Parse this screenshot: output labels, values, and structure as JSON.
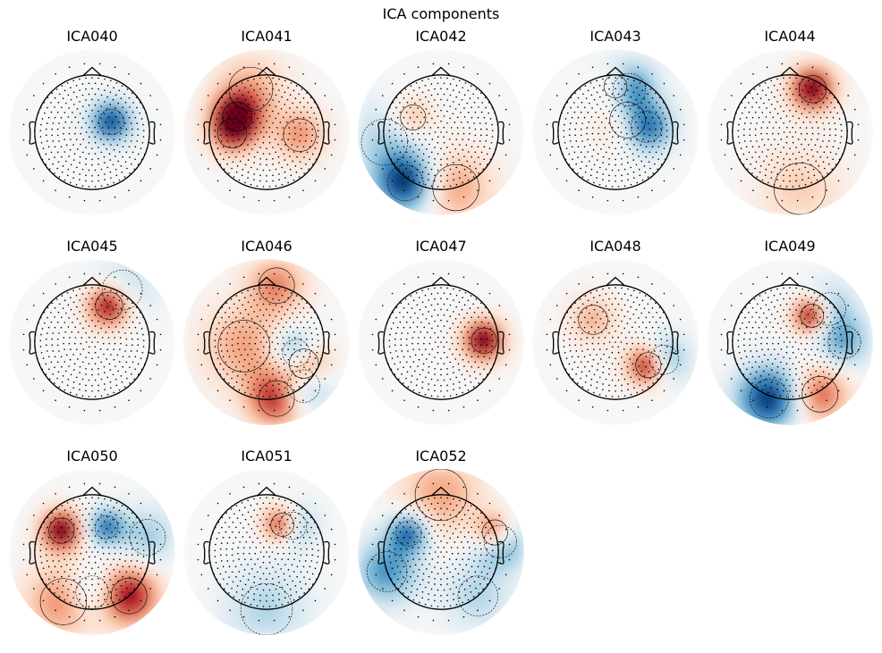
{
  "figure": {
    "title": "ICA components",
    "colors": {
      "positive": "#b2182b",
      "negative": "#2166ac",
      "neutral": "#f7f7f7",
      "outline": "#000000",
      "sensor": "#000000"
    }
  },
  "chart_data": {
    "type": "topomap-grid",
    "title": "ICA components",
    "rows": 3,
    "cols": 5,
    "colormap": "RdBu_r (red = positive weight, blue = negative weight)",
    "components": [
      {
        "label": "ICA040",
        "sources": [
          {
            "az": 62,
            "r": 0.38,
            "w": -0.9,
            "s": 0.06
          }
        ]
      },
      {
        "label": "ICA041",
        "sources": [
          {
            "az": -62,
            "r": 0.58,
            "w": 1.0,
            "s": 0.08
          },
          {
            "az": -92,
            "r": 0.6,
            "w": 0.5,
            "s": 0.08
          },
          {
            "az": 95,
            "r": 0.58,
            "w": 0.45,
            "s": 0.1
          },
          {
            "az": -20,
            "r": 0.8,
            "w": 0.35,
            "s": 0.18
          }
        ]
      },
      {
        "label": "ICA042",
        "sources": [
          {
            "az": -145,
            "r": 1.08,
            "w": -1.0,
            "s": 0.12
          },
          {
            "az": 165,
            "r": 1.0,
            "w": 0.4,
            "s": 0.2
          },
          {
            "az": -62,
            "r": 0.55,
            "w": 0.35,
            "s": 0.06
          },
          {
            "az": -100,
            "r": 1.0,
            "w": -0.3,
            "s": 0.2
          }
        ]
      },
      {
        "label": "ICA043",
        "sources": [
          {
            "az": 80,
            "r": 0.55,
            "w": -0.9,
            "s": 0.09
          },
          {
            "az": 18,
            "r": 0.78,
            "w": -0.8,
            "s": 0.1
          },
          {
            "az": 45,
            "r": 0.3,
            "w": 0.35,
            "s": 0.12
          },
          {
            "az": 0,
            "r": 0.8,
            "w": 0.4,
            "s": 0.05
          }
        ]
      },
      {
        "label": "ICA044",
        "sources": [
          {
            "az": 28,
            "r": 0.85,
            "w": 1.0,
            "s": 0.07
          },
          {
            "az": 170,
            "r": 1.0,
            "w": 0.25,
            "s": 0.25
          }
        ]
      },
      {
        "label": "ICA045",
        "sources": [
          {
            "az": 25,
            "r": 0.7,
            "w": 1.0,
            "s": 0.07
          },
          {
            "az": 30,
            "r": 1.05,
            "w": -0.3,
            "s": 0.15
          }
        ]
      },
      {
        "label": "ICA046",
        "sources": [
          {
            "az": 120,
            "r": 0.75,
            "w": 1.0,
            "s": 0.08
          },
          {
            "az": 110,
            "r": 0.55,
            "w": -0.9,
            "s": 0.07
          },
          {
            "az": 170,
            "r": 1.0,
            "w": 0.8,
            "s": 0.12
          },
          {
            "az": 140,
            "r": 1.0,
            "w": -0.6,
            "s": 0.1
          },
          {
            "az": -100,
            "r": 0.4,
            "w": 0.4,
            "s": 0.25
          },
          {
            "az": 10,
            "r": 1.0,
            "w": 0.5,
            "s": 0.12
          }
        ]
      },
      {
        "label": "ICA047",
        "sources": [
          {
            "az": 88,
            "r": 0.75,
            "w": 1.0,
            "s": 0.06
          }
        ]
      },
      {
        "label": "ICA048",
        "sources": [
          {
            "az": 125,
            "r": 0.7,
            "w": 1.0,
            "s": 0.06
          },
          {
            "az": 110,
            "r": 0.9,
            "w": -0.6,
            "s": 0.08
          },
          {
            "az": -45,
            "r": 0.55,
            "w": 0.35,
            "s": 0.08
          }
        ]
      },
      {
        "label": "ICA049",
        "sources": [
          {
            "az": 40,
            "r": 0.6,
            "w": 1.0,
            "s": 0.05
          },
          {
            "az": -160,
            "r": 1.05,
            "w": -1.0,
            "s": 0.14
          },
          {
            "az": 150,
            "r": 1.05,
            "w": 0.6,
            "s": 0.12
          },
          {
            "az": 90,
            "r": 0.95,
            "w": -0.5,
            "s": 0.1
          },
          {
            "az": 50,
            "r": 0.9,
            "w": -0.4,
            "s": 0.1
          }
        ]
      },
      {
        "label": "ICA050",
        "sources": [
          {
            "az": -55,
            "r": 0.65,
            "w": 1.0,
            "s": 0.06
          },
          {
            "az": 30,
            "r": 0.5,
            "w": -0.7,
            "s": 0.05
          },
          {
            "az": 140,
            "r": 1.0,
            "w": 0.9,
            "s": 0.12
          },
          {
            "az": -150,
            "r": 1.0,
            "w": 0.5,
            "s": 0.2
          },
          {
            "az": 180,
            "r": 0.7,
            "w": -0.4,
            "s": 0.1
          },
          {
            "az": 75,
            "r": 1.0,
            "w": -0.35,
            "s": 0.12
          }
        ]
      },
      {
        "label": "ICA051",
        "sources": [
          {
            "az": 30,
            "r": 0.55,
            "w": 1.0,
            "s": 0.05
          },
          {
            "az": 45,
            "r": 0.65,
            "w": -0.6,
            "s": 0.07
          },
          {
            "az": 180,
            "r": 1.0,
            "w": -0.3,
            "s": 0.25
          }
        ]
      },
      {
        "label": "ICA052",
        "sources": [
          {
            "az": 70,
            "r": 1.0,
            "w": 1.0,
            "s": 0.06
          },
          {
            "az": 80,
            "r": 1.05,
            "w": -0.8,
            "s": 0.1
          },
          {
            "az": -60,
            "r": 0.65,
            "w": -0.8,
            "s": 0.06
          },
          {
            "az": -110,
            "r": 1.0,
            "w": -0.6,
            "s": 0.15
          },
          {
            "az": 0,
            "r": 1.0,
            "w": 0.4,
            "s": 0.25
          },
          {
            "az": 140,
            "r": 1.0,
            "w": -0.3,
            "s": 0.15
          }
        ]
      }
    ]
  }
}
